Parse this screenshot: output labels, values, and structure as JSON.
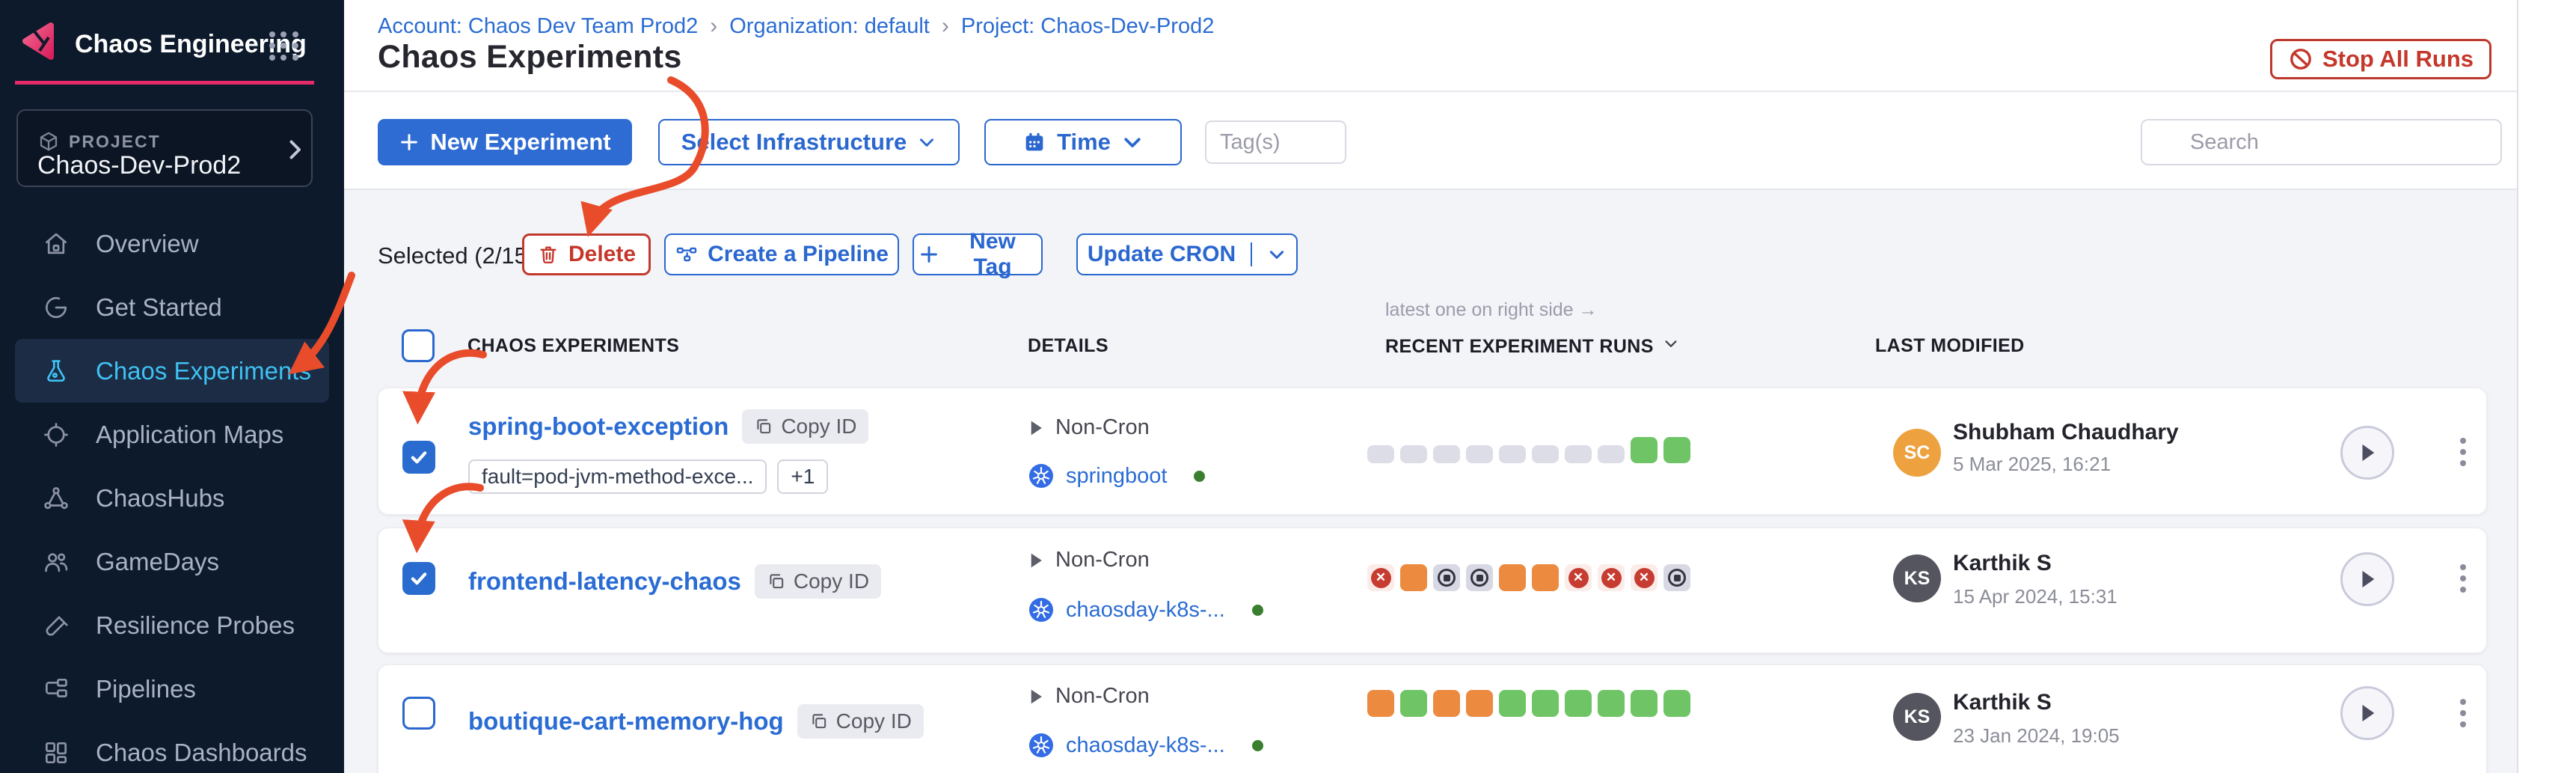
{
  "sidebar": {
    "app_title": "Chaos Engineering",
    "project_label": "PROJECT",
    "project_name": "Chaos-Dev-Prod2",
    "items": [
      {
        "label": "Overview",
        "active": false
      },
      {
        "label": "Get Started",
        "active": false
      },
      {
        "label": "Chaos Experiments",
        "active": true
      },
      {
        "label": "Application Maps",
        "active": false
      },
      {
        "label": "ChaosHubs",
        "active": false
      },
      {
        "label": "GameDays",
        "active": false
      },
      {
        "label": "Resilience Probes",
        "active": false
      },
      {
        "label": "Pipelines",
        "active": false
      },
      {
        "label": "Chaos Dashboards",
        "active": false
      }
    ]
  },
  "header": {
    "breadcrumb": [
      "Account: Chaos Dev Team Prod2",
      "Organization: default",
      "Project: Chaos-Dev-Prod2"
    ],
    "breadcrumb_separator": "›",
    "title": "Chaos Experiments",
    "stop_all_runs": "Stop All Runs"
  },
  "toolbar": {
    "new_experiment": "New Experiment",
    "select_infrastructure": "Select Infrastructure",
    "time": "Time",
    "tags_placeholder": "Tag(s)",
    "search_placeholder": "Search"
  },
  "selection": {
    "selected_label": "Selected (2/15)",
    "delete": "Delete",
    "create_pipeline": "Create a Pipeline",
    "new_tag": "New Tag",
    "update_cron": "Update CRON"
  },
  "table": {
    "runs_note": "latest one on right side →",
    "headers": [
      "CHAOS EXPERIMENTS",
      "DETAILS",
      "RECENT EXPERIMENT RUNS",
      "LAST MODIFIED"
    ],
    "rows": [
      {
        "name": "spring-boot-exception",
        "copy_id": "Copy ID",
        "tag": "fault=pod-jvm-method-exce...",
        "tag_more": "+1",
        "checked": true,
        "schedule": "Non-Cron",
        "infra": "springboot",
        "runs_style": "bars",
        "runs": [
          "none",
          "none",
          "none",
          "none",
          "none",
          "none",
          "none",
          "none",
          "passed",
          "passed"
        ],
        "modified_by": "Shubham Chaudhary",
        "modified_at": "5 Mar 2025, 16:21",
        "avatar": {
          "initials": "SC",
          "color": "#eda23f"
        }
      },
      {
        "name": "frontend-latency-chaos",
        "copy_id": "Copy ID",
        "checked": true,
        "schedule": "Non-Cron",
        "infra": "chaosday-k8s-...",
        "runs_style": "squares",
        "runs": [
          "failed",
          "running",
          "stopped",
          "stopped",
          "running",
          "running",
          "failed",
          "failed",
          "failed",
          "stopped"
        ],
        "modified_by": "Karthik S",
        "modified_at": "15 Apr 2024, 15:31",
        "avatar": {
          "initials": "KS",
          "color": "#55555f"
        }
      },
      {
        "name": "boutique-cart-memory-hog",
        "copy_id": "Copy ID",
        "checked": false,
        "schedule": "Non-Cron",
        "infra": "chaosday-k8s-...",
        "runs_style": "squares",
        "runs": [
          "running",
          "passed",
          "running",
          "running",
          "passed",
          "passed",
          "passed",
          "passed",
          "passed",
          "passed"
        ],
        "modified_by": "Karthik S",
        "modified_at": "23 Jan 2024, 19:05",
        "avatar": {
          "initials": "KS",
          "color": "#55555f"
        }
      }
    ]
  },
  "colors": {
    "primary_blue": "#2e6bd3",
    "link_blue": "#2a6cd4",
    "active_nav_blue": "#3ec1f2",
    "brand_pink": "#e42a6a",
    "danger_red": "#c5372b",
    "run_green": "#6fc566",
    "run_orange": "#ec8a40",
    "run_gray": "#dcdde6",
    "annotation_red": "#e84c2b",
    "sidebar_bg": "#0c1a2c"
  }
}
